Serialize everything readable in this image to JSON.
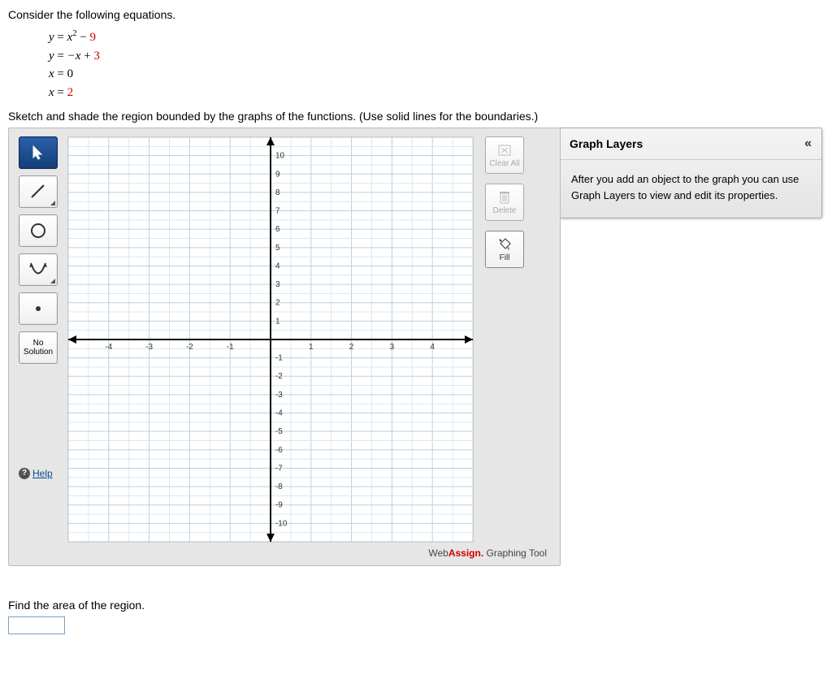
{
  "problem": {
    "intro": "Consider the following equations.",
    "equations": {
      "eq1": {
        "lhs": "y",
        "op": "=",
        "rhs_plain": "x",
        "rhs_sup": "2",
        "rhs_op": " − ",
        "rhs_const": "9"
      },
      "eq2": {
        "lhs": "y",
        "op": "=",
        "rhs_neg": "−x + ",
        "rhs_const": "3"
      },
      "eq3": {
        "lhs": "x",
        "op": "=",
        "rhs_const": "0"
      },
      "eq4": {
        "lhs": "x",
        "op": "=",
        "rhs_const": "2"
      }
    },
    "instruction": "Sketch and shade the region bounded by the graphs of the functions. (Use solid lines for the boundaries.)"
  },
  "tool": {
    "buttons": {
      "pointer": "pointer",
      "line": "line",
      "circle": "circle",
      "parabola": "parabola",
      "point": "point",
      "no_solution_l1": "No",
      "no_solution_l2": "Solution",
      "help": "Help"
    },
    "side": {
      "clear_all": "Clear All",
      "delete": "Delete",
      "fill": "Fill"
    },
    "branding": {
      "web": "Web",
      "assign": "Assign.",
      "suffix": " Graphing Tool"
    }
  },
  "graph": {
    "xlim": [
      -5,
      5
    ],
    "ylim": [
      -11,
      11
    ],
    "x_major_step": 1,
    "y_major_step": 1,
    "x_tick_labels": [
      -4,
      -3,
      -2,
      -1,
      1,
      2,
      3,
      4
    ],
    "y_tick_labels": [
      -10,
      -9,
      -8,
      -7,
      -6,
      -5,
      -4,
      -3,
      -2,
      -1,
      1,
      2,
      3,
      4,
      5,
      6,
      7,
      8,
      9,
      10
    ],
    "grid_color_minor": "#d8e8f0",
    "grid_color_major": "#b8d0e0",
    "axis_color": "#000000",
    "background_color": "#ffffff"
  },
  "layers": {
    "title": "Graph Layers",
    "collapse": "«",
    "body": "After you add an object to the graph you can use Graph Layers to view and edit its properties."
  },
  "final": {
    "question": "Find the area of the region.",
    "value": ""
  }
}
